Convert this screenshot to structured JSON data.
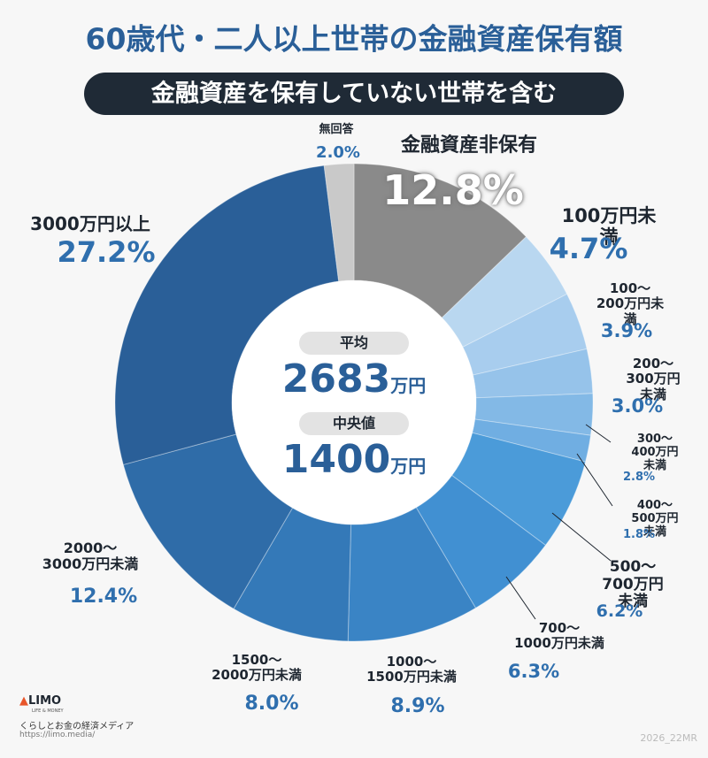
{
  "chart_data": {
    "type": "donut",
    "title": "60歳代・二人以上世帯の金融資産保有額",
    "subtitle": "金融資産を保有していない世帯を含む",
    "categories": [
      "金融資産非保有",
      "100万円未満",
      "100〜\n200万円未満",
      "200〜\n300万円未満",
      "300〜\n400万円未満",
      "400〜\n500万円未満",
      "500〜\n700万円未満",
      "700〜\n1000万円未満",
      "1000〜\n1500万円未満",
      "1500〜\n2000万円未満",
      "2000〜\n3000万円未満",
      "3000万円以上",
      "無回答"
    ],
    "values": [
      12.8,
      4.7,
      3.9,
      3.0,
      2.8,
      1.8,
      6.2,
      6.3,
      8.9,
      8.0,
      12.4,
      27.2,
      2.0
    ],
    "value_labels": [
      "12.8%",
      "4.7%",
      "3.9%",
      "3.0%",
      "2.8%",
      "1.8%",
      "6.2%",
      "6.3%",
      "8.9%",
      "8.0%",
      "12.4%",
      "27.2%",
      "2.0%"
    ],
    "colors": [
      "#8a8a8a",
      "#b9d7f0",
      "#a8cdee",
      "#96c3ea",
      "#83b9e6",
      "#70aee2",
      "#4b9bd9",
      "#4190d2",
      "#3a84c5",
      "#3479b8",
      "#2f6ca8",
      "#2a5f98",
      "#c9c9c9"
    ],
    "center": {
      "mean_label": "平均",
      "mean": 2683,
      "mean_unit": "万円",
      "median_label": "中央値",
      "median": 1400,
      "median_unit": "万円"
    }
  },
  "footer": {
    "logo": "LIMO",
    "logo_sub": "LIFE & MONEY",
    "tagline": "くらしとお金の経済メディア",
    "url": "https://limo.media/",
    "code": "2026_22MR"
  }
}
